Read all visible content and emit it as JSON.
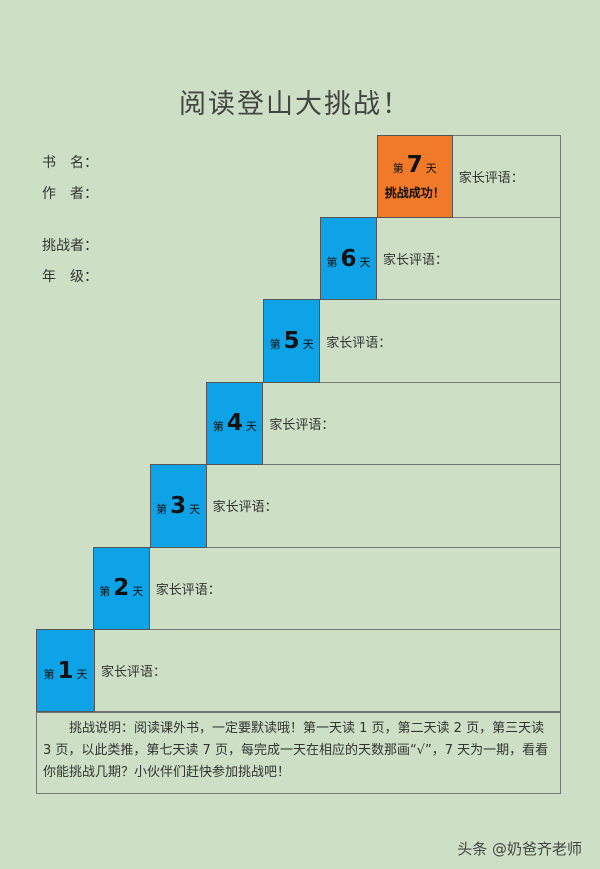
{
  "header": {
    "title": "阅读登山大挑战！"
  },
  "fields": [
    {
      "label": "书　名："
    },
    {
      "label": "作　者："
    },
    {
      "label": "挑战者："
    },
    {
      "label": "年　级："
    }
  ],
  "steps": [
    {
      "prefix": "第",
      "day": 1,
      "suffix": "天",
      "comment_label": "家长评语："
    },
    {
      "prefix": "第",
      "day": 2,
      "suffix": "天",
      "comment_label": "家长评语："
    },
    {
      "prefix": "第",
      "day": 3,
      "suffix": "天",
      "comment_label": "家长评语："
    },
    {
      "prefix": "第",
      "day": 4,
      "suffix": "天",
      "comment_label": "家长评语："
    },
    {
      "prefix": "第",
      "day": 5,
      "suffix": "天",
      "comment_label": "家长评语："
    },
    {
      "prefix": "第",
      "day": 6,
      "suffix": "天",
      "comment_label": "家长评语："
    },
    {
      "prefix": "第",
      "day": 7,
      "suffix": "天",
      "badge": "挑战成功！",
      "comment_label": "家长评语："
    }
  ],
  "instructions": "挑战说明：阅读课外书，一定要默读哦！第一天读 1 页，第二天读 2 页，第三天读 3 页，以此类推，第七天读 7 页，每完成一天在相应的天数那画“√”，7 天为一期，看看你能挑战几期？小伙伴们赶快参加挑战吧！",
  "watermark": "头条 @奶爸齐老师"
}
